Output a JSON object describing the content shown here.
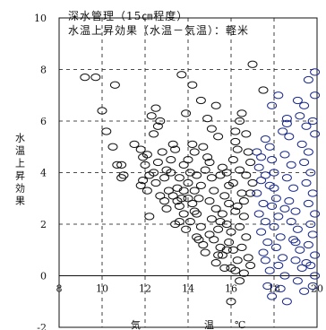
{
  "chart_data": {
    "type": "scatter",
    "title": "深水管理（15㎝程度）",
    "subtitle": "水温上昇効果（水温－気温）：軽米",
    "xlabel_parts": [
      "気",
      "温",
      "℃"
    ],
    "ylabel": "水温上昇効果",
    "xlim": [
      8,
      20
    ],
    "ylim": [
      -2,
      10
    ],
    "x_ticks": [
      8,
      10,
      12,
      14,
      16,
      18,
      20
    ],
    "y_ticks": [
      -2,
      0,
      2,
      4,
      6,
      8,
      10
    ],
    "grid": "dashed",
    "colors": {
      "black_series": "#111111",
      "blue_series": "#1a2a8c"
    },
    "series": [
      {
        "color": "black",
        "points": [
          [
            9.2,
            7.7
          ],
          [
            9.7,
            7.7
          ],
          [
            10.6,
            7.4
          ],
          [
            10.0,
            6.4
          ],
          [
            10.2,
            5.6
          ],
          [
            10.5,
            5.0
          ],
          [
            10.7,
            4.3
          ],
          [
            10.9,
            4.3
          ],
          [
            11.0,
            3.9
          ],
          [
            10.9,
            3.8
          ],
          [
            11.5,
            5.1
          ],
          [
            11.8,
            4.9
          ],
          [
            12.0,
            4.3
          ],
          [
            11.9,
            3.7
          ],
          [
            11.8,
            3.5
          ],
          [
            12.1,
            3.3
          ],
          [
            12.2,
            2.3
          ],
          [
            12.4,
            5.5
          ],
          [
            12.6,
            5.8
          ],
          [
            12.3,
            6.2
          ],
          [
            12.5,
            6.5
          ],
          [
            12.7,
            6.0
          ],
          [
            12.6,
            4.4
          ],
          [
            12.8,
            4.8
          ],
          [
            12.4,
            4.0
          ],
          [
            12.9,
            3.8
          ],
          [
            12.5,
            3.6
          ],
          [
            12.7,
            3.1
          ],
          [
            12.9,
            2.9
          ],
          [
            13.1,
            3.3
          ],
          [
            13.0,
            4.1
          ],
          [
            13.2,
            4.5
          ],
          [
            13.3,
            5.1
          ],
          [
            13.4,
            4.9
          ],
          [
            13.2,
            4.0
          ],
          [
            13.6,
            3.8
          ],
          [
            13.5,
            3.4
          ],
          [
            13.7,
            3.0
          ],
          [
            13.6,
            2.7
          ],
          [
            13.8,
            2.4
          ],
          [
            13.6,
            2.1
          ],
          [
            13.9,
            1.8
          ],
          [
            13.5,
            2.9
          ],
          [
            13.3,
            3.1
          ],
          [
            13.8,
            4.3
          ],
          [
            14.0,
            4.5
          ],
          [
            14.2,
            5.1
          ],
          [
            14.3,
            4.8
          ],
          [
            14.1,
            4.0
          ],
          [
            14.4,
            3.9
          ],
          [
            14.0,
            3.6
          ],
          [
            14.3,
            3.3
          ],
          [
            14.5,
            3.0
          ],
          [
            14.2,
            2.8
          ],
          [
            14.4,
            2.4
          ],
          [
            14.1,
            2.1
          ],
          [
            14.6,
            1.9
          ],
          [
            14.4,
            1.5
          ],
          [
            14.7,
            1.2
          ],
          [
            14.8,
            0.9
          ],
          [
            14.0,
            3.0
          ],
          [
            14.6,
            3.5
          ],
          [
            14.8,
            4.1
          ],
          [
            14.9,
            4.6
          ],
          [
            14.7,
            5.0
          ],
          [
            15.0,
            4.4
          ],
          [
            15.1,
            3.8
          ],
          [
            15.2,
            3.3
          ],
          [
            15.0,
            2.9
          ],
          [
            15.3,
            2.6
          ],
          [
            15.1,
            2.2
          ],
          [
            15.4,
            1.8
          ],
          [
            15.2,
            1.4
          ],
          [
            15.5,
            1.1
          ],
          [
            15.6,
            0.8
          ],
          [
            15.3,
            0.5
          ],
          [
            15.7,
            0.3
          ],
          [
            15.5,
            3.9
          ],
          [
            15.6,
            4.2
          ],
          [
            15.8,
            4.0
          ],
          [
            15.9,
            3.5
          ],
          [
            15.7,
            3.1
          ],
          [
            15.9,
            2.8
          ],
          [
            15.6,
            2.4
          ],
          [
            15.8,
            2.0
          ],
          [
            16.0,
            1.7
          ],
          [
            15.9,
            1.3
          ],
          [
            16.1,
            1.0
          ],
          [
            16.3,
            0.6
          ],
          [
            16.2,
            0.2
          ],
          [
            16.4,
            -0.2
          ],
          [
            16.0,
            -1.0
          ],
          [
            16.1,
            4.5
          ],
          [
            16.3,
            4.9
          ],
          [
            16.2,
            5.2
          ],
          [
            16.4,
            4.1
          ],
          [
            16.1,
            3.6
          ],
          [
            16.5,
            3.2
          ],
          [
            16.3,
            2.7
          ],
          [
            16.6,
            2.3
          ],
          [
            16.4,
            1.9
          ],
          [
            16.7,
            1.5
          ],
          [
            16.5,
            1.1
          ],
          [
            16.8,
            0.7
          ],
          [
            16.9,
            0.4
          ],
          [
            16.6,
            0.1
          ],
          [
            16.2,
            5.6
          ],
          [
            16.4,
            6.0
          ],
          [
            16.5,
            6.3
          ],
          [
            16.7,
            5.5
          ],
          [
            16.8,
            4.8
          ],
          [
            16.9,
            4.4
          ],
          [
            16.7,
            3.9
          ],
          [
            17.0,
            3.6
          ],
          [
            16.9,
            3.2
          ],
          [
            17.0,
            8.2
          ],
          [
            17.5,
            7.2
          ],
          [
            15.3,
            6.6
          ],
          [
            14.6,
            6.8
          ],
          [
            14.2,
            7.4
          ],
          [
            13.7,
            7.8
          ],
          [
            14.9,
            6.1
          ],
          [
            15.1,
            5.7
          ],
          [
            15.4,
            5.4
          ],
          [
            13.9,
            6.3
          ],
          [
            12.1,
            4.7
          ],
          [
            11.9,
            4.6
          ],
          [
            12.2,
            3.9
          ],
          [
            13.0,
            2.6
          ],
          [
            13.4,
            2.0
          ],
          [
            14.5,
            1.4
          ],
          [
            15.0,
            1.6
          ],
          [
            15.8,
            1.0
          ],
          [
            16.0,
            0.3
          ],
          [
            15.4,
            0.8
          ],
          [
            13.8,
            3.3
          ],
          [
            14.3,
            2.5
          ],
          [
            15.5,
            2.1
          ],
          [
            16.2,
            2.5
          ],
          [
            16.6,
            2.9
          ]
        ]
      },
      {
        "color": "blue",
        "points": [
          [
            17.2,
            4.8
          ],
          [
            17.3,
            4.2
          ],
          [
            17.4,
            3.7
          ],
          [
            17.2,
            3.2
          ],
          [
            17.5,
            2.8
          ],
          [
            17.3,
            2.4
          ],
          [
            17.6,
            2.1
          ],
          [
            17.4,
            1.7
          ],
          [
            17.7,
            1.3
          ],
          [
            17.5,
            0.9
          ],
          [
            17.6,
            0.6
          ],
          [
            17.8,
            0.2
          ],
          [
            17.7,
            -0.4
          ],
          [
            17.9,
            -0.8
          ],
          [
            17.6,
            5.3
          ],
          [
            17.8,
            5.0
          ],
          [
            17.9,
            4.5
          ],
          [
            18.0,
            4.0
          ],
          [
            17.8,
            3.5
          ],
          [
            18.1,
            3.0
          ],
          [
            17.9,
            2.7
          ],
          [
            18.2,
            2.3
          ],
          [
            18.0,
            1.9
          ],
          [
            18.3,
            1.5
          ],
          [
            18.1,
            1.1
          ],
          [
            18.4,
            0.7
          ],
          [
            18.2,
            0.4
          ],
          [
            18.5,
            0.0
          ],
          [
            18.3,
            -0.5
          ],
          [
            18.6,
            -1.0
          ],
          [
            18.4,
            5.6
          ],
          [
            18.6,
            5.9
          ],
          [
            18.7,
            5.4
          ],
          [
            18.5,
            4.7
          ],
          [
            18.8,
            4.3
          ],
          [
            18.6,
            3.8
          ],
          [
            18.9,
            3.4
          ],
          [
            18.7,
            2.9
          ],
          [
            19.0,
            2.5
          ],
          [
            18.8,
            2.1
          ],
          [
            19.1,
            1.8
          ],
          [
            18.9,
            1.4
          ],
          [
            19.2,
            1.0
          ],
          [
            19.0,
            0.6
          ],
          [
            19.3,
            0.3
          ],
          [
            19.1,
            -0.2
          ],
          [
            19.4,
            -0.6
          ],
          [
            19.2,
            6.2
          ],
          [
            19.4,
            6.6
          ],
          [
            19.5,
            5.8
          ],
          [
            19.3,
            5.1
          ],
          [
            19.6,
            4.8
          ],
          [
            19.4,
            4.4
          ],
          [
            19.7,
            4.0
          ],
          [
            19.5,
            3.6
          ],
          [
            19.8,
            3.2
          ],
          [
            19.6,
            2.8
          ],
          [
            19.9,
            2.4
          ],
          [
            19.7,
            2.0
          ],
          [
            19.8,
            1.6
          ],
          [
            19.6,
            1.2
          ],
          [
            19.9,
            0.8
          ],
          [
            19.7,
            0.4
          ],
          [
            19.9,
            0.0
          ],
          [
            19.8,
            -0.4
          ],
          [
            19.9,
            5.5
          ],
          [
            19.8,
            6.0
          ],
          [
            19.9,
            7.0
          ],
          [
            19.6,
            7.6
          ],
          [
            19.9,
            7.9
          ],
          [
            18.2,
            7.0
          ],
          [
            17.9,
            6.6
          ],
          [
            18.6,
            6.1
          ],
          [
            19.1,
            6.8
          ],
          [
            17.4,
            4.6
          ],
          [
            17.6,
            3.9
          ],
          [
            18.0,
            3.4
          ],
          [
            18.5,
            2.6
          ],
          [
            19.0,
            1.3
          ],
          [
            19.5,
            0.5
          ]
        ]
      }
    ]
  }
}
